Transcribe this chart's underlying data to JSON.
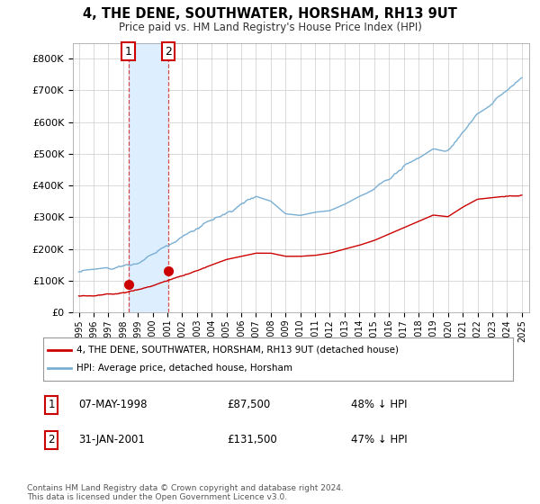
{
  "title": "4, THE DENE, SOUTHWATER, HORSHAM, RH13 9UT",
  "subtitle": "Price paid vs. HM Land Registry's House Price Index (HPI)",
  "ylim": [
    0,
    850000
  ],
  "yticks": [
    0,
    100000,
    200000,
    300000,
    400000,
    500000,
    600000,
    700000,
    800000
  ],
  "ytick_labels": [
    "£0",
    "£100K",
    "£200K",
    "£300K",
    "£400K",
    "£500K",
    "£600K",
    "£700K",
    "£800K"
  ],
  "sale1_date": "07-MAY-1998",
  "sale1_price": 87500,
  "sale1_hpi": "48% ↓ HPI",
  "sale1_x": 1998.35,
  "sale2_date": "31-JAN-2001",
  "sale2_price": 131500,
  "sale2_hpi": "47% ↓ HPI",
  "sale2_x": 2001.08,
  "legend_red": "4, THE DENE, SOUTHWATER, HORSHAM, RH13 9UT (detached house)",
  "legend_blue": "HPI: Average price, detached house, Horsham",
  "red_color": "#cc0000",
  "blue_color": "#7aafd4",
  "shade_color": "#ddeeff",
  "background_color": "#ffffff",
  "grid_color": "#cccccc",
  "footer": "Contains HM Land Registry data © Crown copyright and database right 2024.\nThis data is licensed under the Open Government Licence v3.0.",
  "blue_anchors_x": [
    1995,
    1996,
    1997,
    1998,
    1999,
    2000,
    2001,
    2002,
    2003,
    2004,
    2005,
    2006,
    2007,
    2008,
    2009,
    2010,
    2011,
    2012,
    2013,
    2014,
    2015,
    2016,
    2017,
    2018,
    2019,
    2020,
    2021,
    2022,
    2023,
    2024,
    2025
  ],
  "blue_anchors_y": [
    128000,
    132000,
    138000,
    148000,
    158000,
    180000,
    210000,
    240000,
    265000,
    290000,
    310000,
    340000,
    370000,
    355000,
    315000,
    310000,
    320000,
    325000,
    345000,
    370000,
    390000,
    420000,
    460000,
    490000,
    520000,
    510000,
    570000,
    630000,
    660000,
    700000,
    740000
  ],
  "red_anchors_x": [
    1995,
    1996,
    1997,
    1998,
    1999,
    2000,
    2001,
    2002,
    2003,
    2004,
    2005,
    2006,
    2007,
    2008,
    2009,
    2010,
    2011,
    2012,
    2013,
    2014,
    2015,
    2016,
    2017,
    2018,
    2019,
    2020,
    2021,
    2022,
    2023,
    2024,
    2025
  ],
  "red_anchors_y": [
    52000,
    54000,
    57000,
    62000,
    72000,
    85000,
    100000,
    115000,
    130000,
    148000,
    165000,
    175000,
    185000,
    185000,
    175000,
    175000,
    178000,
    185000,
    198000,
    210000,
    225000,
    245000,
    265000,
    285000,
    305000,
    300000,
    330000,
    355000,
    360000,
    365000,
    370000
  ]
}
